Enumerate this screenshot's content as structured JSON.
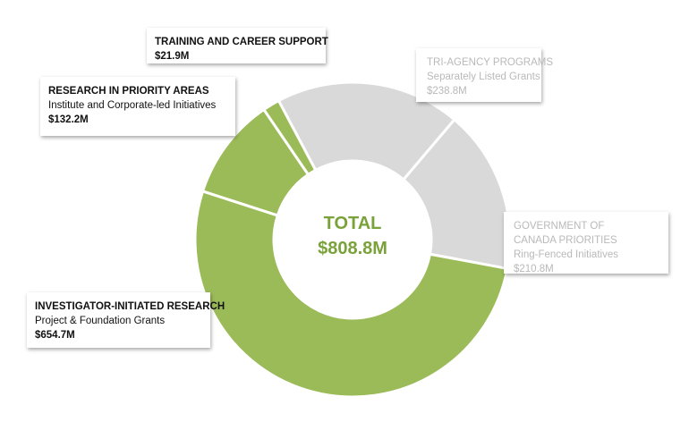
{
  "chart_data": {
    "type": "pie",
    "variant": "donut",
    "center": {
      "label": "TOTAL",
      "value": "$808.8M"
    },
    "slices": [
      {
        "id": "tri",
        "title": "TRI-AGENCY PROGRAMS",
        "subtitle": "Separately Listed Grants",
        "amount": "$238.8M",
        "value": 238.8,
        "color": "#d9d9d9"
      },
      {
        "id": "gov",
        "title": "GOVERNMENT OF CANADA PRIORITIES",
        "subtitle": "Ring-Fenced Initiatives",
        "amount": "$210.8M",
        "value": 210.8,
        "color": "#d9d9d9"
      },
      {
        "id": "investigator",
        "title": "INVESTIGATOR-INITIATED RESEARCH",
        "subtitle": "Project & Foundation Grants",
        "amount": "$654.7M",
        "value": 654.7,
        "color": "#9bbb59"
      },
      {
        "id": "priority",
        "title": "RESEARCH IN PRIORITY AREAS",
        "subtitle": "Institute and Corporate-led Initiatives",
        "amount": "$132.2M",
        "value": 132.2,
        "color": "#9bbb59"
      },
      {
        "id": "training",
        "title": "TRAINING AND CAREER SUPPORT",
        "subtitle": "",
        "amount": "$21.9M",
        "value": 21.9,
        "color": "#9bbb59"
      }
    ]
  },
  "colors": {
    "green": "#9bbb59",
    "grey": "#d9d9d9",
    "total_text": "#7aa23a",
    "muted_text": "#b9b9b9"
  }
}
